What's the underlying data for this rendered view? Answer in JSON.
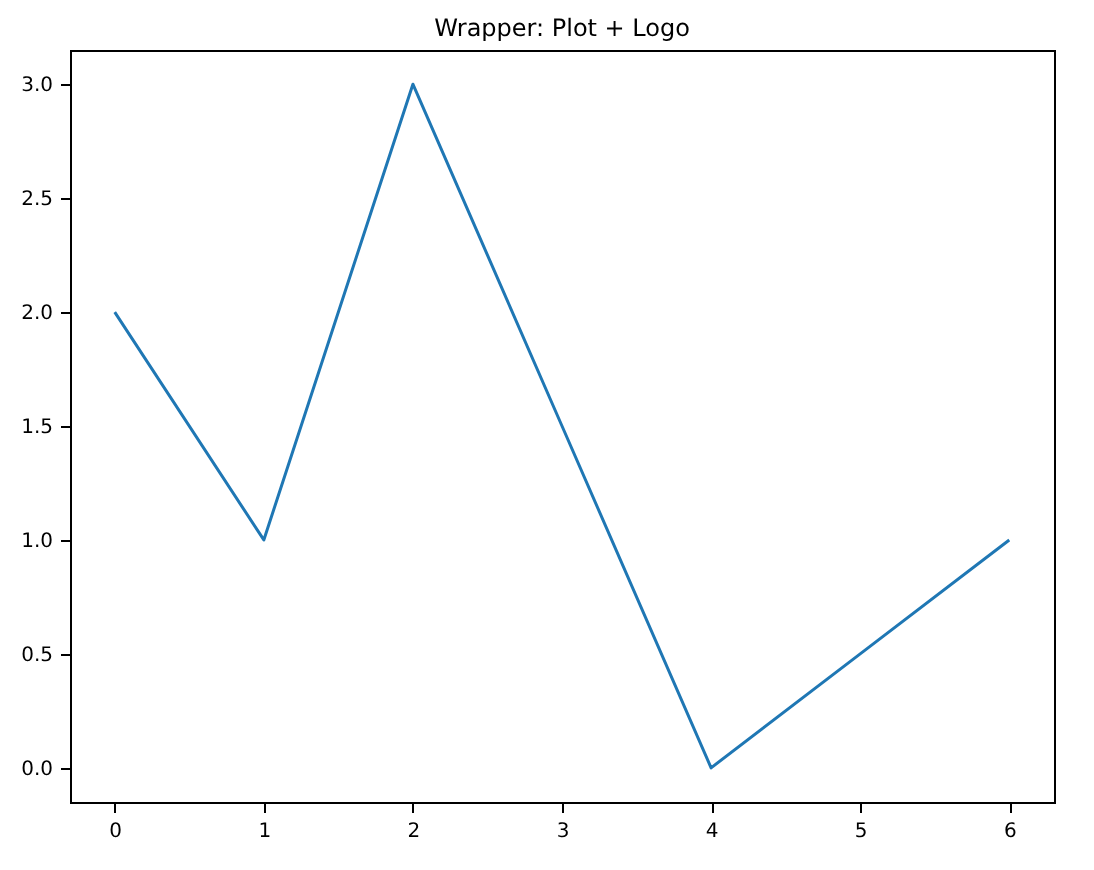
{
  "chart_data": {
    "type": "line",
    "title": "Wrapper: Plot + Logo",
    "x": [
      0,
      1,
      2,
      3,
      4,
      5,
      6
    ],
    "series": [
      {
        "color": "#1f77b4",
        "values": [
          2,
          1,
          3,
          1.5,
          0,
          0.5,
          1
        ]
      }
    ],
    "xlim": [
      -0.3,
      6.3
    ],
    "xticks": [
      0,
      1,
      2,
      3,
      4,
      5,
      6
    ],
    "ylim": [
      -0.15,
      3.15
    ],
    "yticks": [
      {
        "value": 0,
        "label": "0.0"
      },
      0.5,
      {
        "value": 1,
        "label": "1.0"
      },
      1.5,
      {
        "value": 2,
        "label": "2.0"
      },
      2.5,
      {
        "value": 3,
        "label": "3.0"
      }
    ],
    "grid": false,
    "marker": "none",
    "line_style": "solid"
  }
}
